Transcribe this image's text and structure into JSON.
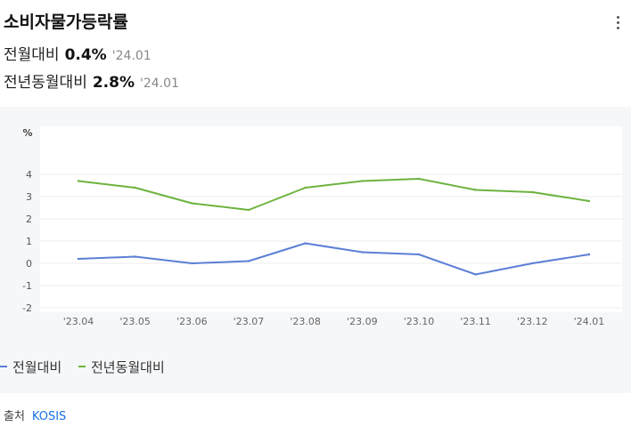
{
  "title": "소비자물가등락률",
  "stats": [
    {
      "label": "전월대비",
      "value": "0.4%",
      "date": "'24.01"
    },
    {
      "label": "전년동월대비",
      "value": "2.8%",
      "date": "'24.01"
    }
  ],
  "menu_icon": "more-vert-icon",
  "source": {
    "label": "출처",
    "link": "KOSIS"
  },
  "colors": {
    "mom": "#5b7fd6",
    "yoy": "#6cb33f",
    "link": "#1a73e8"
  },
  "chart_data": {
    "type": "line",
    "ylabel": "%",
    "ylim": [
      -2,
      4
    ],
    "yticks": [
      4,
      3,
      2,
      1,
      0,
      -1,
      -2
    ],
    "grid": true,
    "legend": "bottom-left",
    "categories": [
      "'23.04",
      "'23.05",
      "'23.06",
      "'23.07",
      "'23.08",
      "'23.09",
      "'23.10",
      "'23.11",
      "'23.12",
      "'24.01"
    ],
    "series": [
      {
        "name": "전월대비",
        "color": "#5b7fd6",
        "values": [
          0.2,
          0.3,
          0.0,
          0.1,
          0.9,
          0.5,
          0.4,
          -0.5,
          0.0,
          0.4
        ]
      },
      {
        "name": "전년동월대비",
        "color": "#6cb33f",
        "values": [
          3.7,
          3.4,
          2.7,
          2.4,
          3.4,
          3.7,
          3.8,
          3.3,
          3.2,
          2.8
        ]
      }
    ]
  }
}
